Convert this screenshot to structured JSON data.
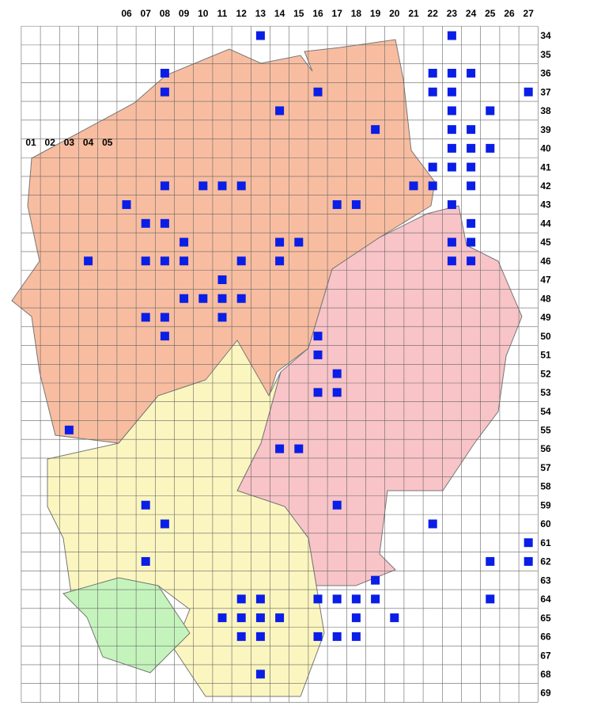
{
  "columns": [
    "01",
    "02",
    "03",
    "04",
    "05",
    "06",
    "07",
    "08",
    "09",
    "10",
    "11",
    "12",
    "13",
    "14",
    "15",
    "16",
    "17",
    "18",
    "19",
    "20",
    "21",
    "22",
    "23",
    "24",
    "25",
    "26",
    "27"
  ],
  "rows": [
    "34",
    "35",
    "36",
    "37",
    "38",
    "39",
    "40",
    "41",
    "42",
    "43",
    "44",
    "45",
    "46",
    "47",
    "48",
    "49",
    "50",
    "51",
    "52",
    "53",
    "54",
    "55",
    "56",
    "57",
    "58",
    "59",
    "60",
    "61",
    "62",
    "63",
    "64",
    "65",
    "66",
    "67",
    "68",
    "69"
  ],
  "occurrences": [
    [
      13,
      34
    ],
    [
      23,
      34
    ],
    [
      8,
      36
    ],
    [
      22,
      36
    ],
    [
      23,
      36
    ],
    [
      24,
      36
    ],
    [
      8,
      37
    ],
    [
      16,
      37
    ],
    [
      22,
      37
    ],
    [
      23,
      37
    ],
    [
      27,
      37
    ],
    [
      14,
      38
    ],
    [
      23,
      38
    ],
    [
      25,
      38
    ],
    [
      19,
      39
    ],
    [
      23,
      39
    ],
    [
      24,
      39
    ],
    [
      23,
      40
    ],
    [
      24,
      40
    ],
    [
      23,
      41
    ],
    [
      22,
      41
    ],
    [
      24,
      41
    ],
    [
      25,
      40
    ],
    [
      21,
      42
    ],
    [
      22,
      42
    ],
    [
      24,
      42
    ],
    [
      23,
      43
    ],
    [
      10,
      42
    ],
    [
      11,
      42
    ],
    [
      12,
      42
    ],
    [
      8,
      42
    ],
    [
      6,
      43
    ],
    [
      17,
      43
    ],
    [
      18,
      43
    ],
    [
      7,
      44
    ],
    [
      8,
      44
    ],
    [
      24,
      44
    ],
    [
      24,
      45
    ],
    [
      23,
      45
    ],
    [
      24,
      46
    ],
    [
      23,
      46
    ],
    [
      9,
      46
    ],
    [
      8,
      46
    ],
    [
      7,
      46
    ],
    [
      9,
      45
    ],
    [
      14,
      45
    ],
    [
      15,
      45
    ],
    [
      14,
      46
    ],
    [
      4,
      46
    ],
    [
      12,
      46
    ],
    [
      11,
      47
    ],
    [
      12,
      48
    ],
    [
      9,
      48
    ],
    [
      10,
      48
    ],
    [
      11,
      49
    ],
    [
      11,
      48
    ],
    [
      7,
      49
    ],
    [
      8,
      49
    ],
    [
      8,
      50
    ],
    [
      16,
      50
    ],
    [
      16,
      51
    ],
    [
      17,
      52
    ],
    [
      16,
      53
    ],
    [
      17,
      53
    ],
    [
      3,
      55
    ],
    [
      14,
      56
    ],
    [
      15,
      56
    ],
    [
      17,
      59
    ],
    [
      7,
      59
    ],
    [
      8,
      60
    ],
    [
      22,
      60
    ],
    [
      27,
      61
    ],
    [
      7,
      62
    ],
    [
      25,
      62
    ],
    [
      27,
      62
    ],
    [
      13,
      64
    ],
    [
      12,
      64
    ],
    [
      16,
      64
    ],
    [
      17,
      64
    ],
    [
      19,
      63
    ],
    [
      18,
      64
    ],
    [
      19,
      64
    ],
    [
      12,
      65
    ],
    [
      11,
      65
    ],
    [
      13,
      65
    ],
    [
      14,
      65
    ],
    [
      12,
      66
    ],
    [
      13,
      66
    ],
    [
      18,
      65
    ],
    [
      20,
      65
    ],
    [
      17,
      66
    ],
    [
      18,
      66
    ],
    [
      16,
      66
    ],
    [
      13,
      68
    ],
    [
      25,
      64
    ]
  ]
}
